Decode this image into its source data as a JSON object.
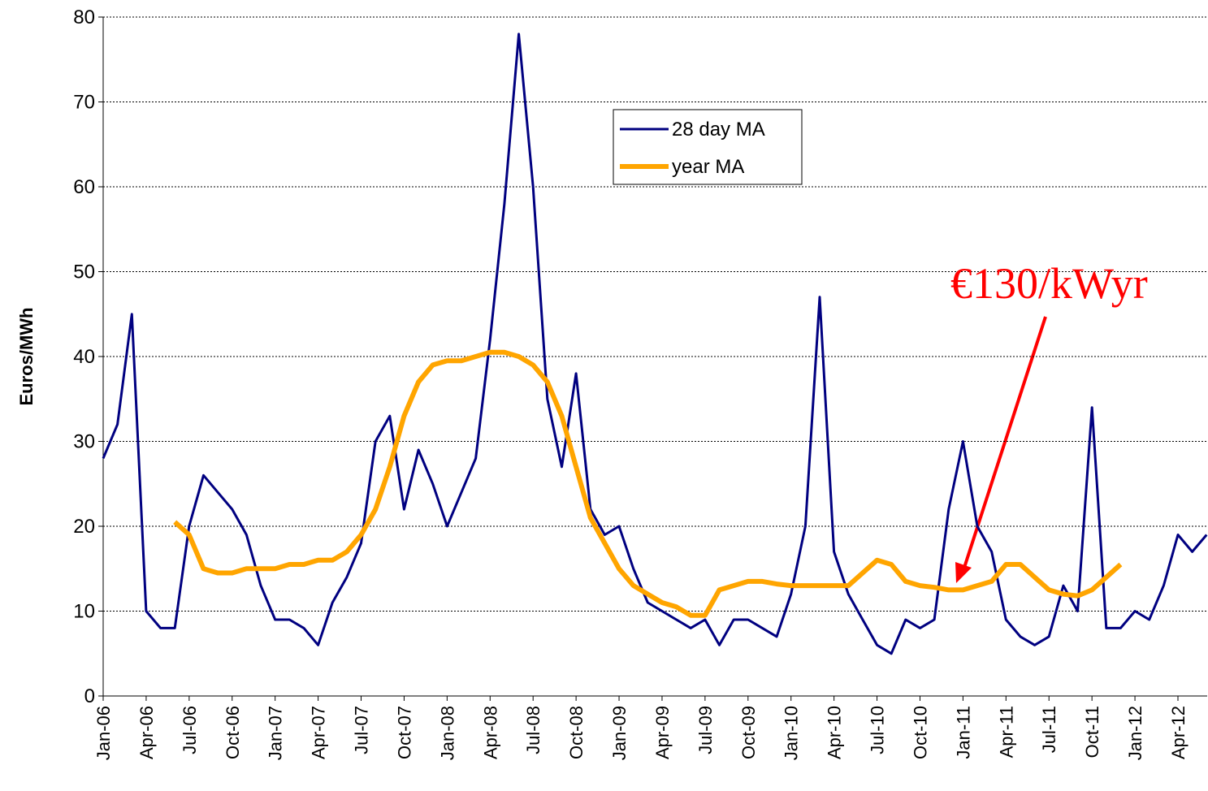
{
  "chart_data": {
    "type": "line",
    "y_label": "Euros/MWh",
    "categories": [
      "Jan-06",
      null,
      null,
      "Apr-06",
      null,
      null,
      "Jul-06",
      null,
      null,
      "Oct-06",
      null,
      null,
      "Jan-07",
      null,
      null,
      "Apr-07",
      null,
      null,
      "Jul-07",
      null,
      null,
      "Oct-07",
      null,
      null,
      "Jan-08",
      null,
      null,
      "Apr-08",
      null,
      null,
      "Jul-08",
      null,
      null,
      "Oct-08",
      null,
      null,
      "Jan-09",
      null,
      null,
      "Apr-09",
      null,
      null,
      "Jul-09",
      null,
      null,
      "Oct-09",
      null,
      null,
      "Jan-10",
      null,
      null,
      "Apr-10",
      null,
      null,
      "Jul-10",
      null,
      null,
      "Oct-10",
      null,
      null,
      "Jan-11",
      null,
      null,
      "Apr-11",
      null,
      null,
      "Jul-11",
      null,
      null,
      "Oct-11",
      null,
      null,
      "Jan-12",
      null,
      null,
      "Apr-12",
      null,
      null
    ],
    "series": [
      {
        "name": "28 day MA",
        "color": "#000080",
        "values": [
          28,
          32,
          45,
          10,
          8,
          8,
          20,
          26,
          24,
          22,
          19,
          13,
          9,
          9,
          8,
          6,
          11,
          14,
          18,
          30,
          33,
          22,
          29,
          25,
          20,
          24,
          28,
          42,
          58,
          78,
          60,
          35,
          27,
          38,
          22,
          19,
          20,
          15,
          11,
          10,
          9,
          8,
          9,
          6,
          9,
          9,
          8,
          7,
          12,
          20,
          47,
          17,
          12,
          9,
          6,
          5,
          9,
          8,
          9,
          22,
          30,
          20,
          17,
          9,
          7,
          6,
          7,
          13,
          10,
          34,
          8,
          8,
          10,
          9,
          13,
          19,
          17,
          19
        ]
      },
      {
        "name": "year MA",
        "color": "#ffa500",
        "values": [
          null,
          null,
          null,
          null,
          null,
          20.5,
          19,
          15,
          14.5,
          14.5,
          15,
          15,
          15,
          15.5,
          15.5,
          16,
          16,
          17,
          19,
          22,
          27,
          33,
          37,
          39,
          39.5,
          39.5,
          40,
          40.5,
          40.5,
          40,
          39,
          37,
          33,
          27,
          21,
          18,
          15,
          13,
          12,
          11,
          10.5,
          9.5,
          9.5,
          12.5,
          13,
          13.5,
          13.5,
          13.2,
          13,
          13,
          13,
          13,
          13,
          14.5,
          16,
          15.5,
          13.5,
          13,
          12.8,
          12.5,
          12.5,
          13,
          13.5,
          15.5,
          15.5,
          14,
          12.5,
          12,
          11.8,
          12.5,
          14,
          15.5,
          null,
          null,
          null,
          null,
          null,
          null
        ]
      }
    ],
    "ylim": [
      0,
      80
    ],
    "yticks": [
      0,
      10,
      20,
      30,
      40,
      50,
      60,
      70,
      80
    ],
    "grid": true,
    "legend": "upper center",
    "annotations": [
      {
        "text": "€130/kWyr",
        "color": "#ff0000"
      }
    ]
  }
}
